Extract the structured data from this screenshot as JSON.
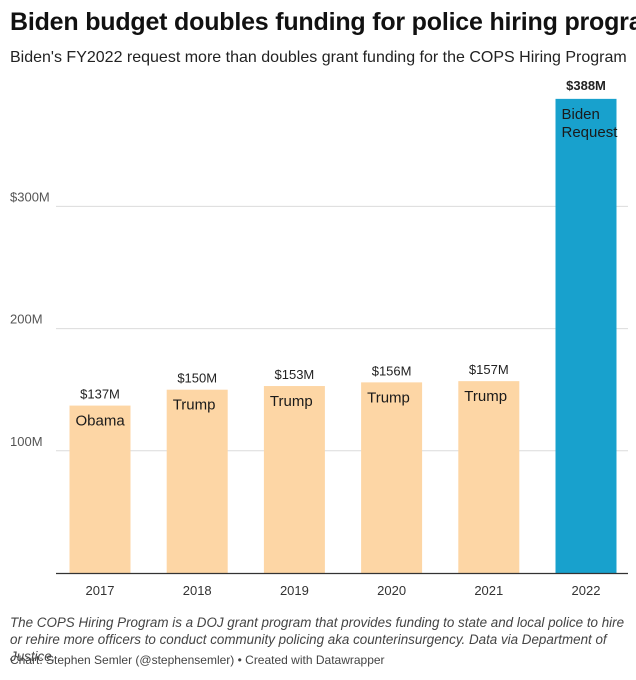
{
  "header": {
    "title": "Biden budget doubles funding for police hiring program",
    "subtitle": "Biden's FY2022 request more than doubles grant funding for the COPS Hiring Program"
  },
  "footer": {
    "notes": "The COPS Hiring Program is a DOJ grant program that provides funding to state and local police to hire or rehire more officers to conduct community policing aka counterinsurgency. Data via Department of Justice.",
    "credit": "Chart: Stephen Semler (@stephensemler) • Created with Datawrapper"
  },
  "chart_data": {
    "type": "bar",
    "title": "Biden budget doubles funding for police hiring program",
    "xlabel": "",
    "ylabel": "",
    "unit": "millions USD",
    "ylim": [
      0,
      400
    ],
    "yticks": [
      100,
      200,
      300
    ],
    "ytick_labels": [
      "100M",
      "200M",
      "$300M"
    ],
    "grid": true,
    "categories": [
      "2017",
      "2018",
      "2019",
      "2020",
      "2021",
      "2022"
    ],
    "values": [
      137,
      150,
      153,
      156,
      157,
      388
    ],
    "value_labels": [
      "$137M",
      "$150M",
      "$153M",
      "$156M",
      "$157M",
      "$388M"
    ],
    "bar_labels": [
      [
        "Obama"
      ],
      [
        "Trump"
      ],
      [
        "Trump"
      ],
      [
        "Trump"
      ],
      [
        "Trump"
      ],
      [
        "Biden",
        "Request"
      ]
    ],
    "colors": [
      "#fdd6a5",
      "#fdd6a5",
      "#fdd6a5",
      "#fdd6a5",
      "#fdd6a5",
      "#18a1cd"
    ],
    "highlight_index": 5
  }
}
